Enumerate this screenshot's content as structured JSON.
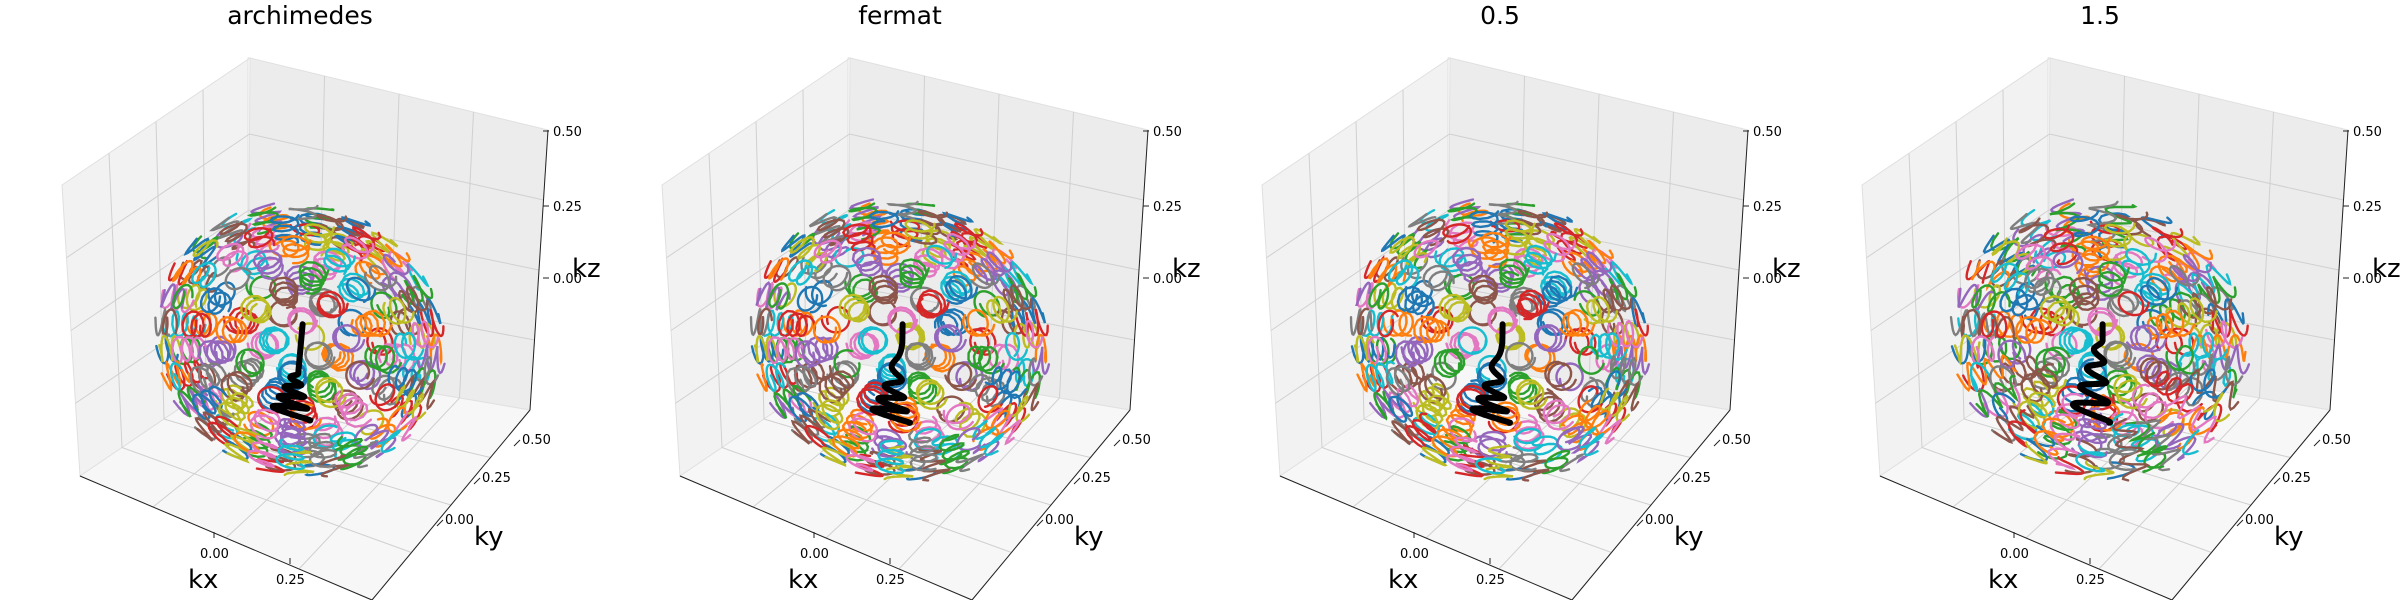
{
  "figure": {
    "colors": [
      "#1f77b4",
      "#ff7f0e",
      "#2ca02c",
      "#d62728",
      "#9467bd",
      "#8c564b",
      "#e377c2",
      "#7f7f7f",
      "#bcbd22",
      "#17becf"
    ],
    "highlight_color": "#000000"
  },
  "chart_data": [
    {
      "type": "line3d",
      "title": "archimedes",
      "xlabel": "kx",
      "ylabel": "ky",
      "zlabel": "kz",
      "xticks": [
        "0.00",
        "0.25"
      ],
      "yticks": [
        "0.00",
        "0.25",
        "0.50"
      ],
      "zticks": [
        "0.00",
        "0.25",
        "0.50"
      ],
      "xlim": [
        -0.5,
        0.5
      ],
      "ylim": [
        -0.5,
        0.5
      ],
      "zlim": [
        -0.5,
        0.5
      ],
      "grid": true,
      "trajectory_shape": "helical spiral trajectories distributed on a sphere",
      "n_turns": 5,
      "highlight_turns": 4,
      "highlighted_trajectory": "black spiral from origin downward",
      "radial_profile": "uniform",
      "sphere_radius": 0.5
    },
    {
      "type": "line3d",
      "title": "fermat",
      "xlabel": "kx",
      "ylabel": "ky",
      "zlabel": "kz",
      "xticks": [
        "0.00",
        "0.25"
      ],
      "yticks": [
        "0.00",
        "0.25",
        "0.50"
      ],
      "zticks": [
        "0.00",
        "0.25",
        "0.50"
      ],
      "xlim": [
        -0.5,
        0.5
      ],
      "ylim": [
        -0.5,
        0.5
      ],
      "zlim": [
        -0.5,
        0.5
      ],
      "grid": true,
      "trajectory_shape": "helical spiral trajectories distributed on a sphere",
      "n_turns": 5,
      "highlight_turns": 4,
      "highlighted_trajectory": "black spiral from origin downward",
      "radial_profile": "fermat",
      "sphere_radius": 0.5
    },
    {
      "type": "line3d",
      "title": "0.5",
      "xlabel": "kx",
      "ylabel": "ky",
      "zlabel": "kz",
      "xticks": [
        "0.00",
        "0.25"
      ],
      "yticks": [
        "0.00",
        "0.25",
        "0.50"
      ],
      "zticks": [
        "0.00",
        "0.25",
        "0.50"
      ],
      "xlim": [
        -0.5,
        0.5
      ],
      "ylim": [
        -0.5,
        0.5
      ],
      "zlim": [
        -0.5,
        0.5
      ],
      "grid": true,
      "trajectory_shape": "helical spiral trajectories distributed on a sphere",
      "n_turns": 5,
      "highlight_turns": 4,
      "highlighted_trajectory": "black spiral from origin downward",
      "radial_profile": "power 0.5",
      "sphere_radius": 0.5
    },
    {
      "type": "line3d",
      "title": "1.5",
      "xlabel": "kx",
      "ylabel": "ky",
      "zlabel": "kz",
      "xticks": [
        "0.00",
        "0.25"
      ],
      "yticks": [
        "0.00",
        "0.25",
        "0.50"
      ],
      "zticks": [
        "0.00",
        "0.25",
        "0.50"
      ],
      "xlim": [
        -0.5,
        0.5
      ],
      "ylim": [
        -0.5,
        0.5
      ],
      "zlim": [
        -0.5,
        0.5
      ],
      "grid": true,
      "trajectory_shape": "helical spiral trajectories distributed on a sphere",
      "n_turns": 5,
      "highlight_turns": 4,
      "highlighted_trajectory": "black spiral from origin downward",
      "radial_profile": "power 1.5",
      "sphere_radius": 0.5
    }
  ]
}
